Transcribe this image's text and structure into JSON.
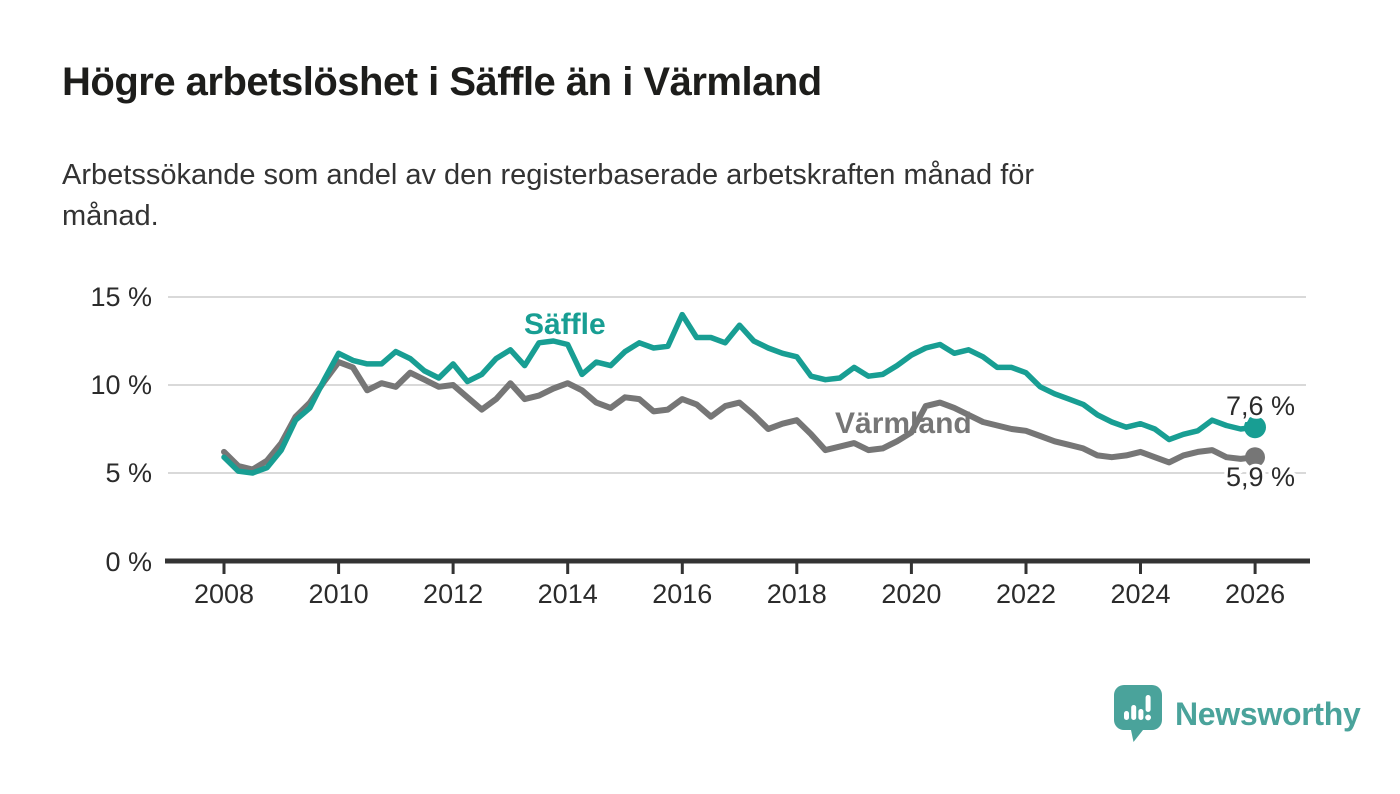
{
  "title": "Högre arbetslöshet i Säffle än i Värmland",
  "subtitle_lines": [
    "Arbetssökande som andel av den registerbaserade arbetskraften månad för",
    "månad."
  ],
  "branding": {
    "logo_text": "Newsworthy"
  },
  "colors": {
    "saffle": "#189e93",
    "varmland": "#767676",
    "grid": "#d9d9d9",
    "axis": "#333333",
    "text": "#2b2b2b",
    "brand": "#4aa39b"
  },
  "chart_data": {
    "type": "line",
    "title": "Högre arbetslöshet i Säffle än i Värmland",
    "subtitle": "Arbetssökande som andel av den registerbaserade arbetskraften månad för månad.",
    "xlabel": "",
    "ylabel": "",
    "ylim": [
      0,
      15
    ],
    "xlim": [
      2008,
      2026.5
    ],
    "grid": "horizontal",
    "legend_position": "inline-labels",
    "x_unit": "year",
    "x_start": 2008,
    "x_step": 0.25,
    "x_tick_labels": [
      "2008",
      "2010",
      "2012",
      "2014",
      "2016",
      "2018",
      "2020",
      "2022",
      "2024",
      "2026"
    ],
    "y_tick_labels": [
      "15 %",
      "10 %",
      "5 %",
      "0 %"
    ],
    "y_ticks": [
      15,
      10,
      5,
      0
    ],
    "series": [
      {
        "name": "Säffle",
        "color": "#189e93",
        "end_label": "7,6 %",
        "end_value": 7.6,
        "values": [
          5.9,
          5.1,
          5.0,
          5.3,
          6.3,
          8.0,
          8.7,
          10.3,
          11.8,
          11.4,
          11.2,
          11.2,
          11.9,
          11.5,
          10.8,
          10.4,
          11.2,
          10.2,
          10.6,
          11.5,
          12.0,
          11.1,
          12.4,
          12.5,
          12.3,
          10.6,
          11.3,
          11.1,
          11.9,
          12.4,
          12.1,
          12.2,
          14.0,
          12.7,
          12.7,
          12.4,
          13.4,
          12.5,
          12.1,
          11.8,
          11.6,
          10.5,
          10.3,
          10.4,
          11.0,
          10.5,
          10.6,
          11.1,
          11.7,
          12.1,
          12.3,
          11.8,
          12.0,
          11.6,
          11.0,
          11.0,
          10.7,
          9.9,
          9.5,
          9.2,
          8.9,
          8.3,
          7.9,
          7.6,
          7.8,
          7.5,
          6.9,
          7.2,
          7.4,
          8.0,
          7.7,
          7.5,
          7.6
        ]
      },
      {
        "name": "Värmland",
        "color": "#767676",
        "end_label": "5,9 %",
        "end_value": 5.9,
        "values": [
          6.2,
          5.4,
          5.2,
          5.7,
          6.7,
          8.2,
          9.0,
          10.2,
          11.3,
          11.0,
          9.7,
          10.1,
          9.9,
          10.7,
          10.3,
          9.9,
          10.0,
          9.3,
          8.6,
          9.2,
          10.1,
          9.2,
          9.4,
          9.8,
          10.1,
          9.7,
          9.0,
          8.7,
          9.3,
          9.2,
          8.5,
          8.6,
          9.2,
          8.9,
          8.2,
          8.8,
          9.0,
          8.3,
          7.5,
          7.8,
          8.0,
          7.2,
          6.3,
          6.5,
          6.7,
          6.3,
          6.4,
          6.8,
          7.3,
          8.8,
          9.0,
          8.7,
          8.3,
          7.9,
          7.7,
          7.5,
          7.4,
          7.1,
          6.8,
          6.6,
          6.4,
          6.0,
          5.9,
          6.0,
          6.2,
          5.9,
          5.6,
          6.0,
          6.2,
          6.3,
          5.9,
          5.8,
          5.9
        ]
      }
    ]
  }
}
